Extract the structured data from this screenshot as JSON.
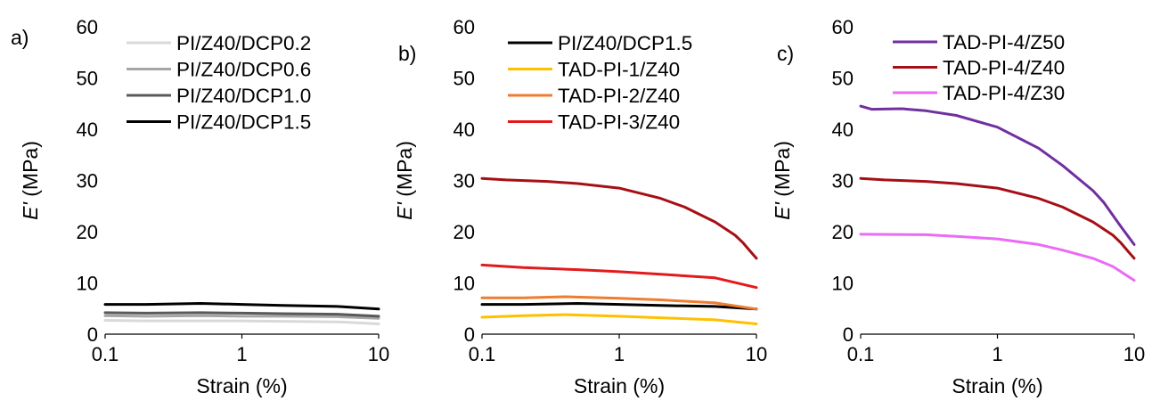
{
  "chart_data": [
    {
      "type": "line",
      "panel_label": "a)",
      "xlabel": "Strain (%)",
      "ylabel_italic": "E'",
      "ylabel_unit": " (MPa)",
      "x_scale": "log",
      "xlim": [
        0.1,
        10
      ],
      "ylim": [
        0,
        60
      ],
      "x_ticks": [
        "0.1",
        "1",
        "10"
      ],
      "y_ticks": [
        "0",
        "10",
        "20",
        "30",
        "40",
        "50",
        "60"
      ],
      "legend_position": "top-right",
      "series": [
        {
          "name": "PI/Z40/DCP0.2",
          "color": "#d9d9d9",
          "x": [
            0.1,
            0.2,
            0.5,
            1,
            2,
            5,
            10
          ],
          "y": [
            2.7,
            2.6,
            2.6,
            2.6,
            2.5,
            2.4,
            2.0
          ]
        },
        {
          "name": "PI/Z40/DCP0.6",
          "color": "#a6a6a6",
          "x": [
            0.1,
            0.2,
            0.5,
            1,
            2,
            5,
            10
          ],
          "y": [
            3.6,
            3.5,
            3.6,
            3.5,
            3.5,
            3.4,
            3.1
          ]
        },
        {
          "name": "PI/Z40/DCP1.0",
          "color": "#595959",
          "x": [
            0.1,
            0.2,
            0.5,
            1,
            2,
            5,
            10
          ],
          "y": [
            4.2,
            4.1,
            4.2,
            4.1,
            4.0,
            3.9,
            3.5
          ]
        },
        {
          "name": "PI/Z40/DCP1.5",
          "color": "#000000",
          "x": [
            0.1,
            0.2,
            0.5,
            1,
            2,
            5,
            10
          ],
          "y": [
            5.8,
            5.8,
            6.0,
            5.8,
            5.6,
            5.4,
            4.9
          ]
        }
      ]
    },
    {
      "type": "line",
      "panel_label": "b)",
      "xlabel": "Strain (%)",
      "ylabel_italic": "E'",
      "ylabel_unit": " (MPa)",
      "x_scale": "log",
      "xlim": [
        0.1,
        10
      ],
      "ylim": [
        0,
        60
      ],
      "x_ticks": [
        "0.1",
        "1",
        "10"
      ],
      "y_ticks": [
        "0",
        "10",
        "20",
        "30",
        "40",
        "50",
        "60"
      ],
      "legend_position": "top-right",
      "series": [
        {
          "name": "PI/Z40/DCP1.5",
          "color": "#000000",
          "x": [
            0.1,
            0.2,
            0.5,
            1,
            2,
            5,
            10
          ],
          "y": [
            5.8,
            5.8,
            6.0,
            5.8,
            5.6,
            5.4,
            4.9
          ]
        },
        {
          "name": "TAD-PI-1/Z40",
          "color": "#ffc000",
          "x": [
            0.1,
            0.2,
            0.4,
            1,
            2,
            5,
            10
          ],
          "y": [
            3.3,
            3.6,
            3.8,
            3.5,
            3.2,
            2.8,
            2.0
          ]
        },
        {
          "name": "TAD-PI-2/Z40",
          "color": "#ed7d31",
          "x": [
            0.1,
            0.2,
            0.4,
            1,
            2,
            5,
            10
          ],
          "y": [
            7.1,
            7.1,
            7.3,
            7.0,
            6.7,
            6.1,
            4.9
          ]
        },
        {
          "name": "TAD-PI-3/Z40",
          "color": "#e31a1c",
          "x": [
            0.1,
            0.2,
            0.5,
            1,
            2,
            5,
            10
          ],
          "y": [
            13.5,
            13.0,
            12.6,
            12.2,
            11.7,
            11.0,
            9.1
          ]
        },
        {
          "name": "",
          "color": "#a50f15",
          "x": [
            0.1,
            0.15,
            0.3,
            0.5,
            1,
            2,
            3,
            5,
            7,
            8,
            9,
            10
          ],
          "y": [
            30.4,
            30.1,
            29.8,
            29.4,
            28.5,
            26.5,
            24.8,
            21.9,
            19.3,
            17.8,
            16.2,
            14.8
          ]
        }
      ]
    },
    {
      "type": "line",
      "panel_label": "c)",
      "xlabel": "Strain (%)",
      "ylabel_italic": "E'",
      "ylabel_unit": " (MPa)",
      "x_scale": "log",
      "xlim": [
        0.1,
        10
      ],
      "ylim": [
        0,
        60
      ],
      "x_ticks": [
        "0.1",
        "1",
        "10"
      ],
      "y_ticks": [
        "0",
        "10",
        "20",
        "30",
        "40",
        "50",
        "60"
      ],
      "legend_position": "top-right",
      "series": [
        {
          "name": "TAD-PI-4/Z50",
          "color": "#7030a0",
          "x": [
            0.1,
            0.12,
            0.2,
            0.3,
            0.5,
            1,
            2,
            3,
            5,
            6,
            8,
            10
          ],
          "y": [
            44.5,
            43.9,
            44.0,
            43.6,
            42.7,
            40.4,
            36.3,
            32.9,
            28.0,
            25.7,
            21.0,
            17.5
          ]
        },
        {
          "name": "TAD-PI-4/Z40",
          "color": "#a50f15",
          "x": [
            0.1,
            0.15,
            0.3,
            0.5,
            1,
            2,
            3,
            5,
            7,
            8,
            9,
            10
          ],
          "y": [
            30.4,
            30.1,
            29.8,
            29.4,
            28.5,
            26.5,
            24.8,
            21.9,
            19.3,
            17.8,
            16.2,
            14.8
          ]
        },
        {
          "name": "TAD-PI-4/Z30",
          "color": "#ea6bf5",
          "x": [
            0.1,
            0.3,
            0.5,
            1,
            2,
            3,
            5,
            7,
            10
          ],
          "y": [
            19.5,
            19.4,
            19.1,
            18.6,
            17.5,
            16.4,
            14.8,
            13.2,
            10.5
          ]
        }
      ]
    }
  ]
}
